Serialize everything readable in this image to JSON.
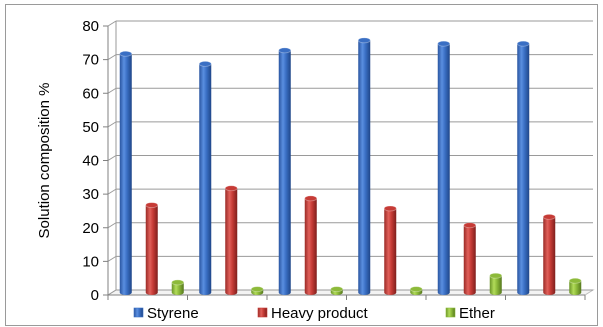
{
  "chart_data": {
    "type": "bar",
    "style": "3d-cylinder-clustered",
    "categories": [
      "",
      "",
      "",
      "",
      "",
      ""
    ],
    "series": [
      {
        "name": "Styrene",
        "values": [
          71,
          68,
          72,
          75,
          74,
          74
        ],
        "color": "#3a6fc4"
      },
      {
        "name": "Heavy product",
        "values": [
          26,
          31,
          28,
          25,
          20,
          22.5
        ],
        "color": "#c63b36"
      },
      {
        "name": "Ether",
        "values": [
          3,
          1,
          1,
          1,
          5,
          3.5
        ],
        "color": "#8dba3a"
      }
    ],
    "ylabel": "Solution composition %",
    "ylim": [
      0,
      80
    ],
    "yticks": [
      0,
      10,
      20,
      30,
      40,
      50,
      60,
      70,
      80
    ],
    "grid": true,
    "legend_position": "bottom"
  }
}
